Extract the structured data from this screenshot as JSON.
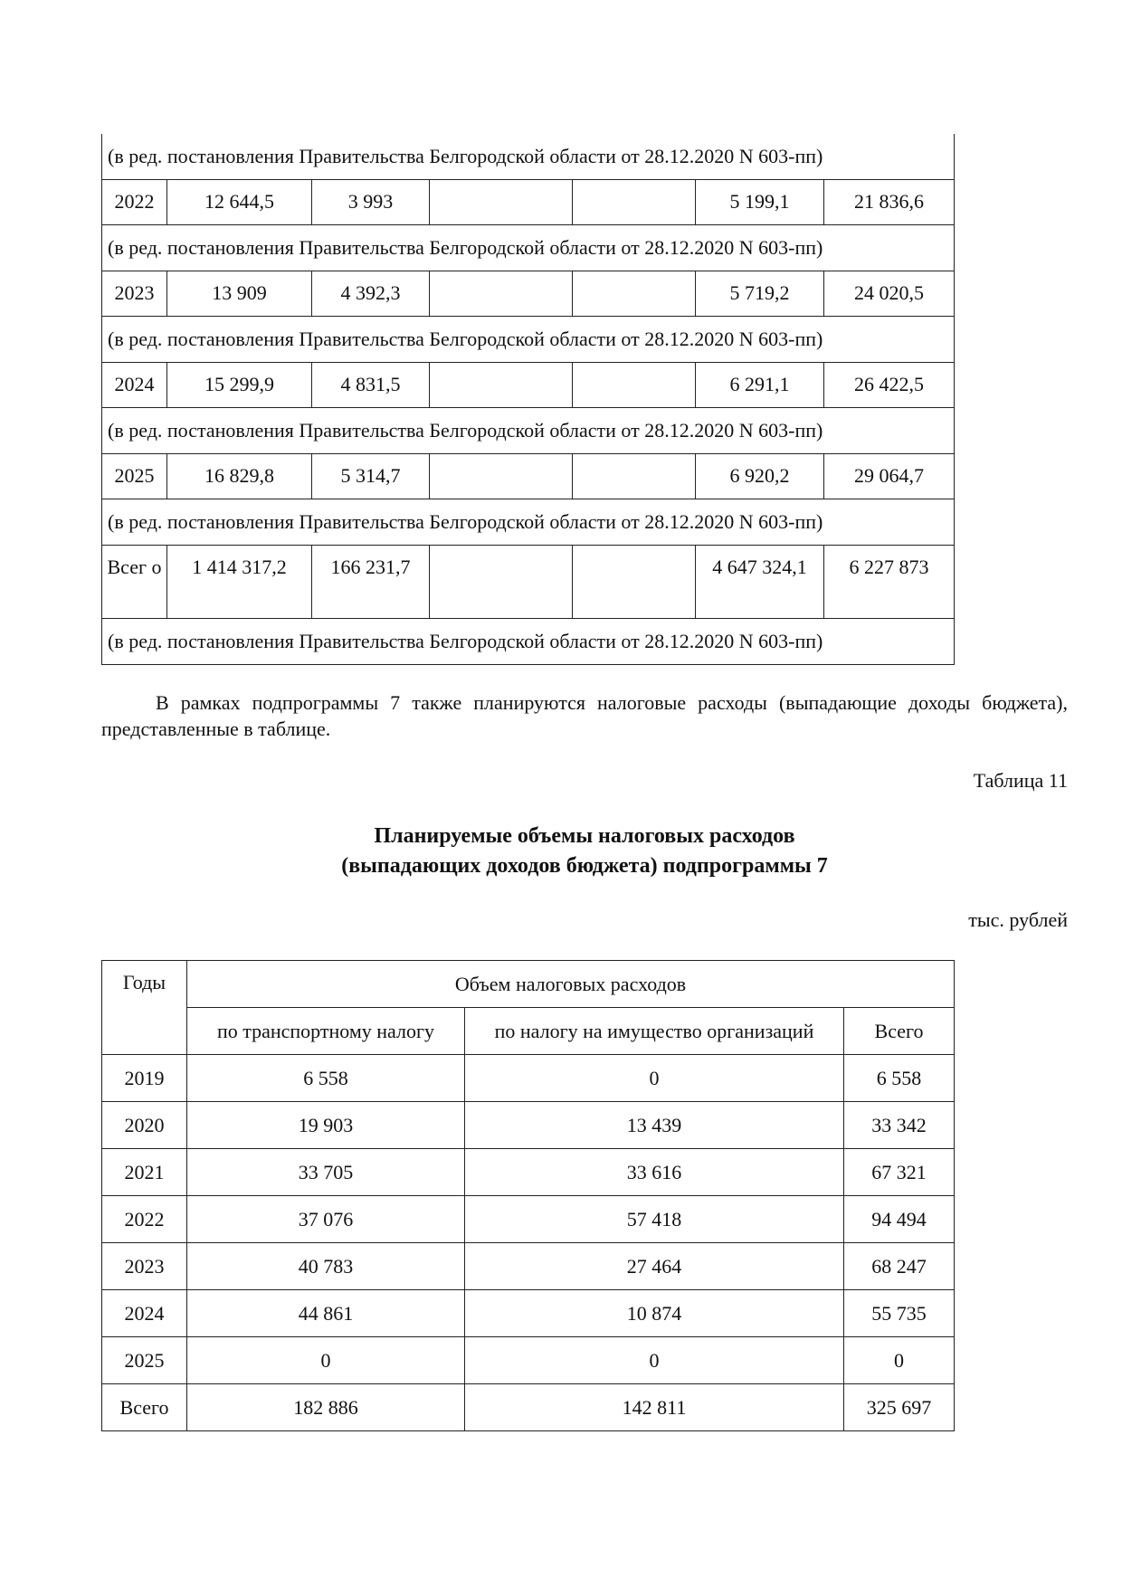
{
  "table_top": {
    "note": "(в ред. постановления Правительства Белгородской области от 28.12.2020 N 603-пп)",
    "rows": [
      {
        "year": "2022",
        "c1": "12 644,5",
        "c2": "3 993",
        "c3": "",
        "c4": "",
        "c5": "5 199,1",
        "c6": "21 836,6"
      },
      {
        "year": "2023",
        "c1": "13 909",
        "c2": "4 392,3",
        "c3": "",
        "c4": "",
        "c5": "5 719,2",
        "c6": "24 020,5"
      },
      {
        "year": "2024",
        "c1": "15 299,9",
        "c2": "4 831,5",
        "c3": "",
        "c4": "",
        "c5": "6 291,1",
        "c6": "26 422,5"
      },
      {
        "year": "2025",
        "c1": "16 829,8",
        "c2": "5 314,7",
        "c3": "",
        "c4": "",
        "c5": "6 920,2",
        "c6": "29 064,7"
      },
      {
        "year": "Всег о",
        "c1": "1 414 317,2",
        "c2": "166 231,7",
        "c3": "",
        "c4": "",
        "c5": "4 647 324,1",
        "c6": "6 227 873"
      }
    ]
  },
  "paragraph": "В рамках подпрограммы 7 также планируются налоговые расходы (выпадающие доходы бюджета), представленные в таблице.",
  "table_number": "Таблица 11",
  "title_line1": "Планируемые объемы налоговых расходов",
  "title_line2": "(выпадающих доходов бюджета) подпрограммы 7",
  "units": "тыс. рублей",
  "table_bottom": {
    "header_years": "Годы",
    "header_group": "Объем налоговых расходов",
    "header_cols": [
      "по транспортному налогу",
      "по налогу на имущество организаций",
      "Всего"
    ],
    "rows": [
      [
        "2019",
        "6 558",
        "0",
        "6 558"
      ],
      [
        "2020",
        "19 903",
        "13 439",
        "33 342"
      ],
      [
        "2021",
        "33 705",
        "33 616",
        "67 321"
      ],
      [
        "2022",
        "37 076",
        "57 418",
        "94 494"
      ],
      [
        "2023",
        "40 783",
        "27 464",
        "68 247"
      ],
      [
        "2024",
        "44 861",
        "10 874",
        "55 735"
      ],
      [
        "2025",
        "0",
        "0",
        "0"
      ],
      [
        "Всего",
        "182 886",
        "142 811",
        "325 697"
      ]
    ]
  }
}
